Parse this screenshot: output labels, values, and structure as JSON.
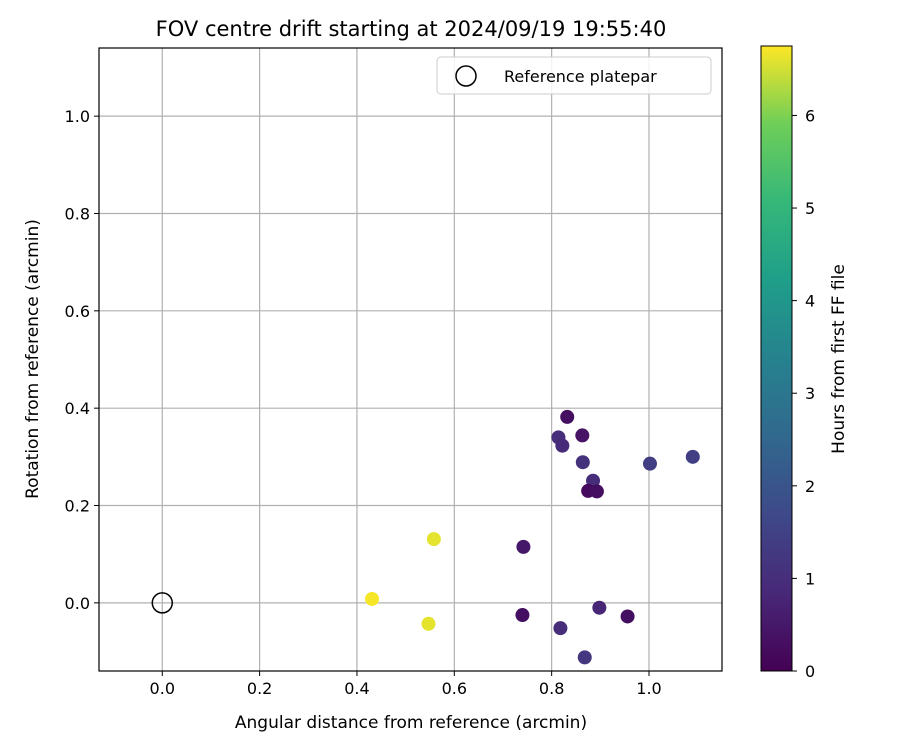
{
  "chart_data": {
    "type": "scatter",
    "title": "FOV centre drift starting at 2024/09/19 19:55:40",
    "xlabel": "Angular distance from reference (arcmin)",
    "ylabel": "Rotation from reference (arcmin)",
    "xlim": [
      -0.13,
      1.15
    ],
    "ylim": [
      -0.14,
      1.14
    ],
    "xticks": [
      "0.0",
      "0.2",
      "0.4",
      "0.6",
      "0.8",
      "1.0"
    ],
    "xtick_values": [
      0.0,
      0.2,
      0.4,
      0.6,
      0.8,
      1.0
    ],
    "yticks": [
      "0.0",
      "0.2",
      "0.4",
      "0.6",
      "0.8",
      "1.0"
    ],
    "ytick_values": [
      0.0,
      0.2,
      0.4,
      0.6,
      0.8,
      1.0
    ],
    "grid": true,
    "legend": {
      "placement": "top-right",
      "entries": [
        {
          "label": "Reference platepar",
          "marker": "open-circle",
          "color": "#000000"
        }
      ]
    },
    "reference_point": {
      "x": 0.0,
      "y": 0.0
    },
    "colorbar": {
      "label": "Hours from first FF file",
      "colormap": "viridis",
      "range": [
        0,
        6.75
      ],
      "ticks": [
        "0",
        "1",
        "2",
        "3",
        "4",
        "5",
        "6"
      ],
      "tick_values": [
        0,
        1,
        2,
        3,
        4,
        5,
        6
      ]
    },
    "points": [
      {
        "x": 0.832,
        "y": 0.382,
        "hours": 0.3
      },
      {
        "x": 0.863,
        "y": 0.344,
        "hours": 0.4
      },
      {
        "x": 0.814,
        "y": 0.34,
        "hours": 1.0
      },
      {
        "x": 0.822,
        "y": 0.323,
        "hours": 0.9
      },
      {
        "x": 0.864,
        "y": 0.289,
        "hours": 1.1
      },
      {
        "x": 0.885,
        "y": 0.251,
        "hours": 1.0
      },
      {
        "x": 0.875,
        "y": 0.23,
        "hours": 0.2
      },
      {
        "x": 0.893,
        "y": 0.229,
        "hours": 0.3
      },
      {
        "x": 1.002,
        "y": 0.286,
        "hours": 1.4
      },
      {
        "x": 1.09,
        "y": 0.3,
        "hours": 1.4
      },
      {
        "x": 0.742,
        "y": 0.115,
        "hours": 0.5
      },
      {
        "x": 0.74,
        "y": -0.025,
        "hours": 0.3
      },
      {
        "x": 0.818,
        "y": -0.052,
        "hours": 1.0
      },
      {
        "x": 0.898,
        "y": -0.01,
        "hours": 0.8
      },
      {
        "x": 0.956,
        "y": -0.028,
        "hours": 0.3
      },
      {
        "x": 0.868,
        "y": -0.112,
        "hours": 1.2
      },
      {
        "x": 0.558,
        "y": 0.131,
        "hours": 6.6
      },
      {
        "x": 0.431,
        "y": 0.008,
        "hours": 6.7
      },
      {
        "x": 0.547,
        "y": -0.043,
        "hours": 6.6
      }
    ]
  }
}
